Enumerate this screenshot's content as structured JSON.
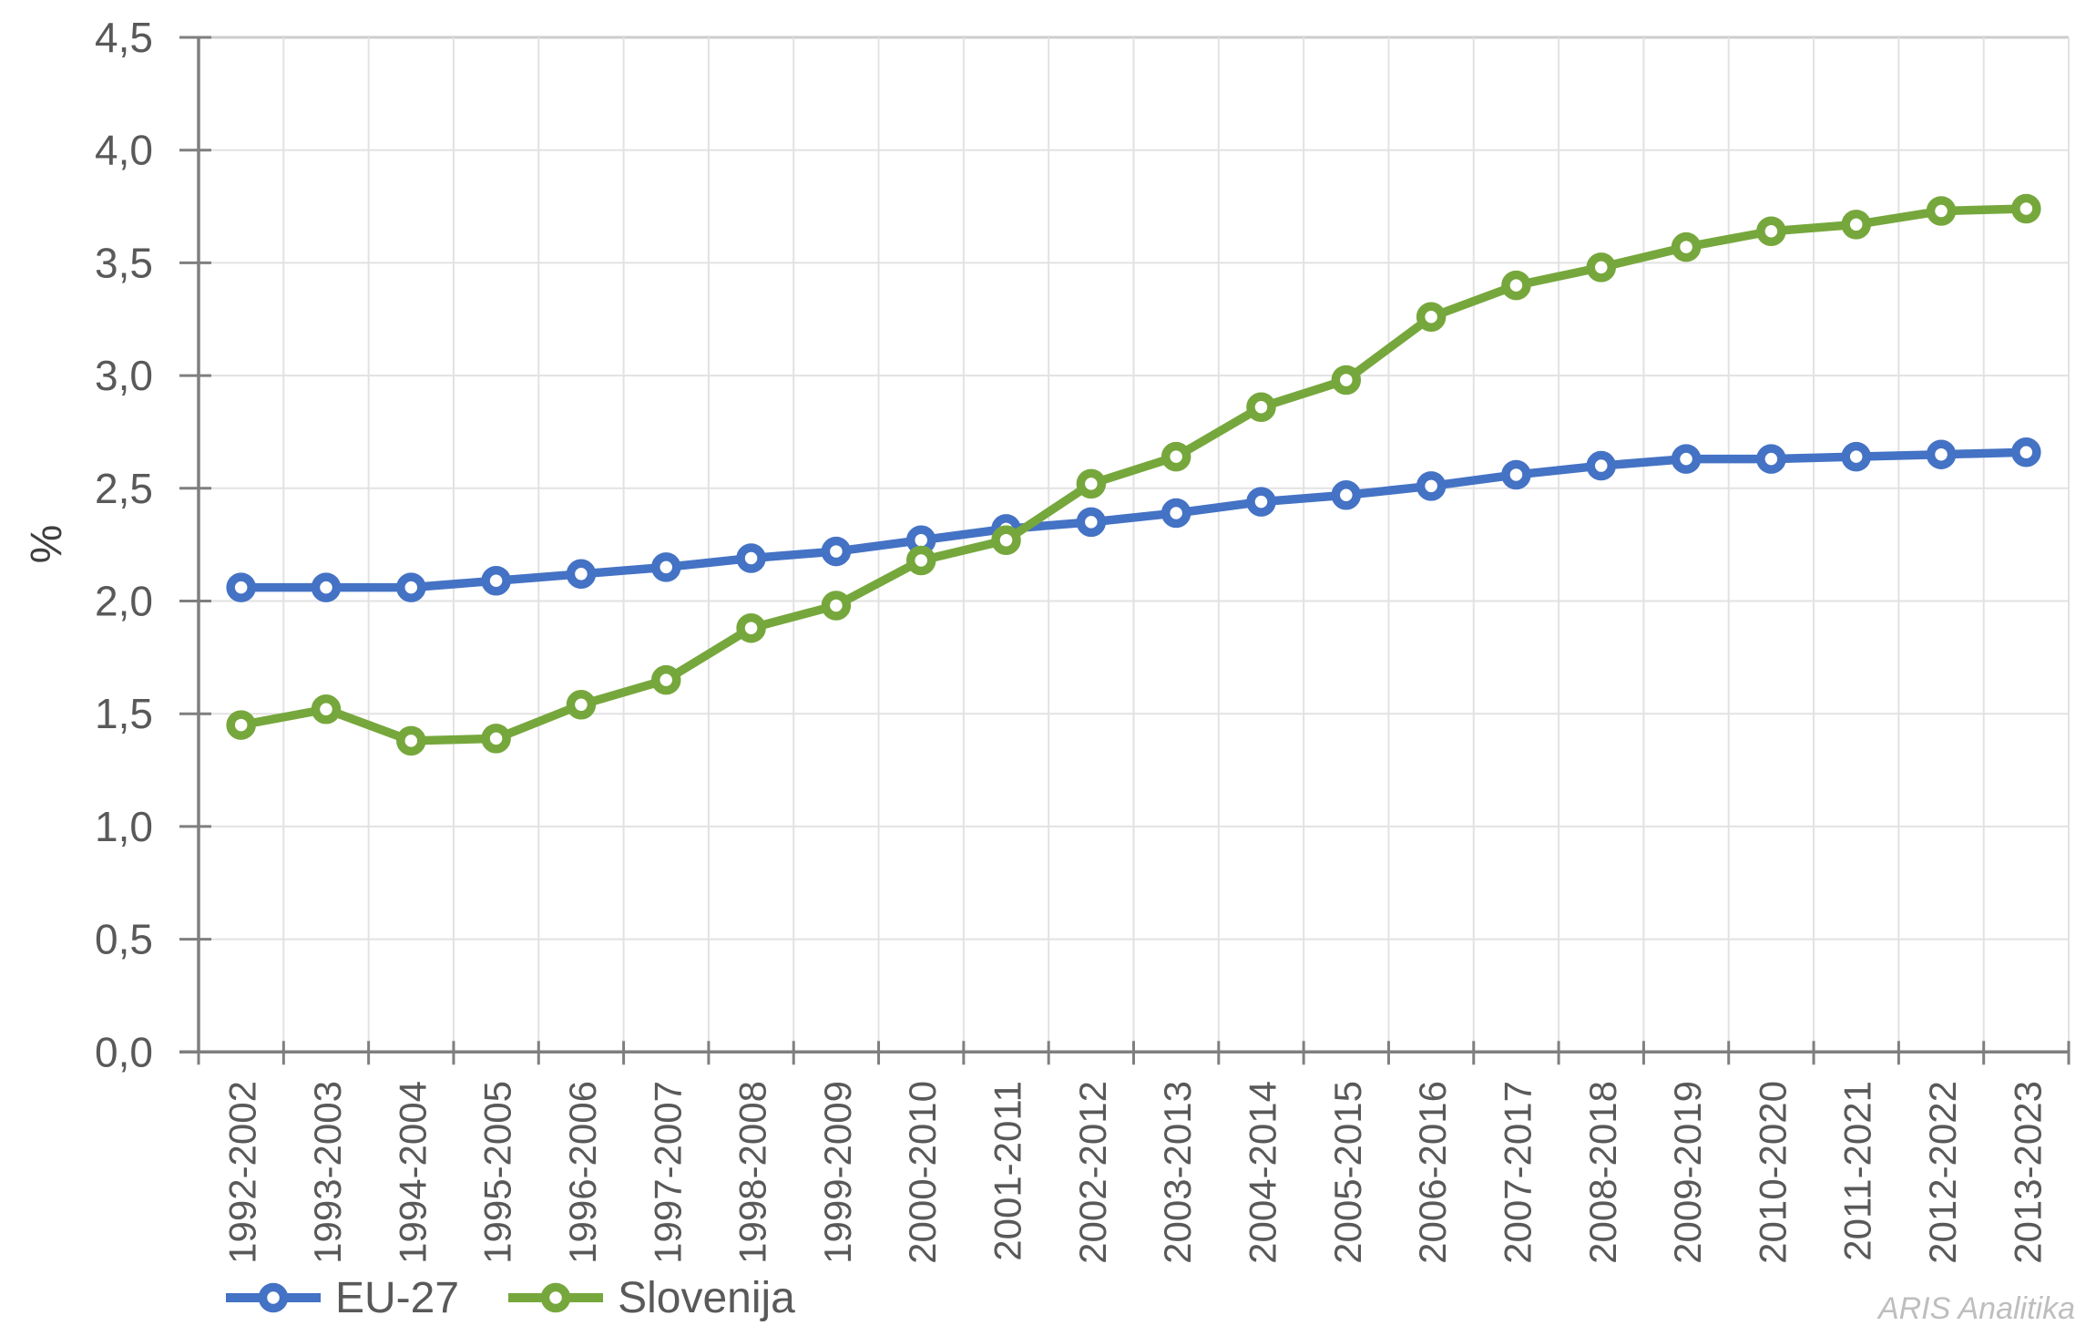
{
  "chart_data": {
    "type": "line",
    "title": "",
    "xlabel": "",
    "ylabel": "%",
    "ylim": [
      0,
      4.5
    ],
    "y_tick_step": 0.5,
    "y_tick_values": [
      0,
      0.5,
      1.0,
      1.5,
      2.0,
      2.5,
      3.0,
      3.5,
      4.0,
      4.5
    ],
    "y_tick_labels": [
      "0,0",
      "0,5",
      "1,0",
      "1,5",
      "2,0",
      "2,5",
      "3,0",
      "3,5",
      "4,0",
      "4,5"
    ],
    "grid": true,
    "legend_position": "bottom-left",
    "categories": [
      "1992-2002",
      "1993-2003",
      "1994-2004",
      "1995-2005",
      "1996-2006",
      "1997-2007",
      "1998-2008",
      "1999-2009",
      "2000-2010",
      "2001-2011",
      "2002-2012",
      "2003-2013",
      "2004-2014",
      "2005-2015",
      "2006-2016",
      "2007-2017",
      "2008-2018",
      "2009-2019",
      "2010-2020",
      "2011-2021",
      "2012-2022",
      "2013-2023"
    ],
    "series": [
      {
        "name": "EU-27",
        "color": "#4472C4",
        "values": [
          2.06,
          2.06,
          2.06,
          2.09,
          2.12,
          2.15,
          2.19,
          2.22,
          2.27,
          2.32,
          2.35,
          2.39,
          2.44,
          2.47,
          2.51,
          2.56,
          2.6,
          2.63,
          2.63,
          2.64,
          2.65,
          2.66
        ]
      },
      {
        "name": "Slovenija",
        "color": "#76A73C",
        "values": [
          1.45,
          1.52,
          1.38,
          1.39,
          1.54,
          1.65,
          1.88,
          1.98,
          2.18,
          2.27,
          2.52,
          2.64,
          2.86,
          2.98,
          3.26,
          3.4,
          3.48,
          3.57,
          3.64,
          3.67,
          3.73,
          3.74
        ]
      }
    ]
  },
  "watermark": "ARIS Analitika",
  "colors": {
    "axis": "#7F7F7F",
    "grid": "#E2E2E2",
    "grid_top": "#CCCCCC",
    "tick_label": "#595959",
    "watermark": "#BEBEBE"
  }
}
